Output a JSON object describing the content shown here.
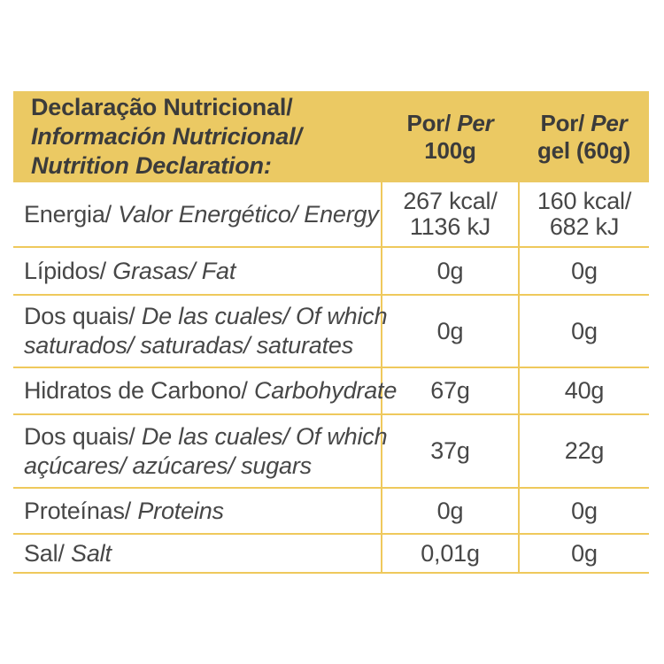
{
  "colors": {
    "header_bg": "#EBC963",
    "grid_line": "#EFC95C",
    "header_text": "#3B3B3B",
    "body_text": "#474747"
  },
  "header": {
    "title_pt": "Declaração Nutricional/",
    "title_es": "Información Nutricional/",
    "title_en": "Nutrition Declaration:",
    "col_100g": {
      "por": "Por/",
      "per": "Per",
      "unit": "100g"
    },
    "col_gel": {
      "por": "Por/",
      "per": "Per",
      "unit": "gel (60g)"
    }
  },
  "rows": [
    {
      "name": "energy",
      "label_lines": [
        [
          {
            "t": "Energia/ ",
            "i": false
          },
          {
            "t": "Valor Energético/ Energy",
            "i": true
          }
        ]
      ],
      "per_100g": [
        "267 kcal/",
        "1136 kJ"
      ],
      "per_gel": [
        "160 kcal/",
        "682 kJ"
      ]
    },
    {
      "name": "fat",
      "label_lines": [
        [
          {
            "t": "Lípidos/ ",
            "i": false
          },
          {
            "t": "Grasas/ Fat",
            "i": true
          }
        ]
      ],
      "per_100g": [
        "0g"
      ],
      "per_gel": [
        "0g"
      ]
    },
    {
      "name": "saturates",
      "label_lines": [
        [
          {
            "t": "Dos quais/ ",
            "i": false
          },
          {
            "t": "De las cuales/ Of which",
            "i": true
          }
        ],
        [
          {
            "t": "saturados/ saturadas/ saturates",
            "i": true
          }
        ]
      ],
      "per_100g": [
        "0g"
      ],
      "per_gel": [
        "0g"
      ]
    },
    {
      "name": "carbohydrate",
      "label_lines": [
        [
          {
            "t": "Hidratos de Carbono/ ",
            "i": false
          },
          {
            "t": "Carbohydrate",
            "i": true
          }
        ]
      ],
      "per_100g": [
        "67g"
      ],
      "per_gel": [
        "40g"
      ]
    },
    {
      "name": "sugars",
      "label_lines": [
        [
          {
            "t": "Dos quais/ ",
            "i": false
          },
          {
            "t": "De las cuales/ Of which",
            "i": true
          }
        ],
        [
          {
            "t": "açúcares/ azúcares/ sugars",
            "i": true
          }
        ]
      ],
      "per_100g": [
        "37g"
      ],
      "per_gel": [
        "22g"
      ]
    },
    {
      "name": "proteins",
      "label_lines": [
        [
          {
            "t": "Proteínas/ ",
            "i": false
          },
          {
            "t": "Proteins",
            "i": true
          }
        ]
      ],
      "per_100g": [
        "0g"
      ],
      "per_gel": [
        "0g"
      ]
    },
    {
      "name": "salt",
      "label_lines": [
        [
          {
            "t": "Sal/ ",
            "i": false
          },
          {
            "t": "Salt",
            "i": true
          }
        ]
      ],
      "per_100g": [
        "0,01g"
      ],
      "per_gel": [
        "0g"
      ]
    }
  ]
}
